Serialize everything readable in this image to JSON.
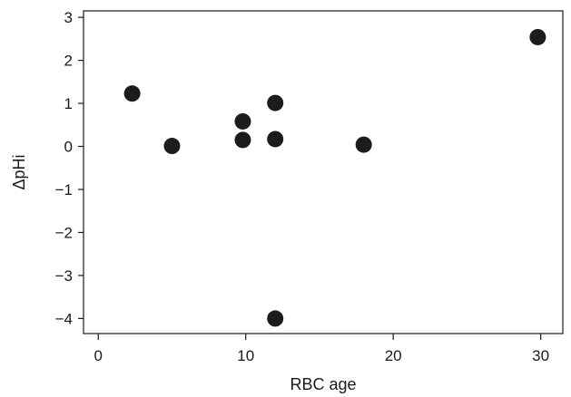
{
  "chart_data": {
    "type": "scatter",
    "title": "",
    "xlabel": "RBC age",
    "ylabel": "ΔpHi",
    "xlim": [
      -1,
      31.5
    ],
    "ylim": [
      -4.35,
      3.15
    ],
    "xticks": [
      0,
      10,
      20,
      30
    ],
    "xtick_labels": [
      "0",
      "10",
      "20",
      "30"
    ],
    "yticks": [
      -4,
      -3,
      -2,
      -1,
      0,
      1,
      2,
      3
    ],
    "ytick_labels": [
      "−4",
      "−3",
      "−2",
      "−1",
      "0",
      "1",
      "2",
      "3"
    ],
    "grid": false,
    "legend": "none",
    "marker_color": "#1c1c1c",
    "x": [
      2.3,
      5.0,
      9.8,
      9.8,
      12.0,
      12.0,
      12.0,
      18.0,
      29.8
    ],
    "y": [
      1.23,
      0.01,
      0.58,
      0.15,
      1.01,
      0.17,
      -4.0,
      0.04,
      2.54
    ]
  }
}
